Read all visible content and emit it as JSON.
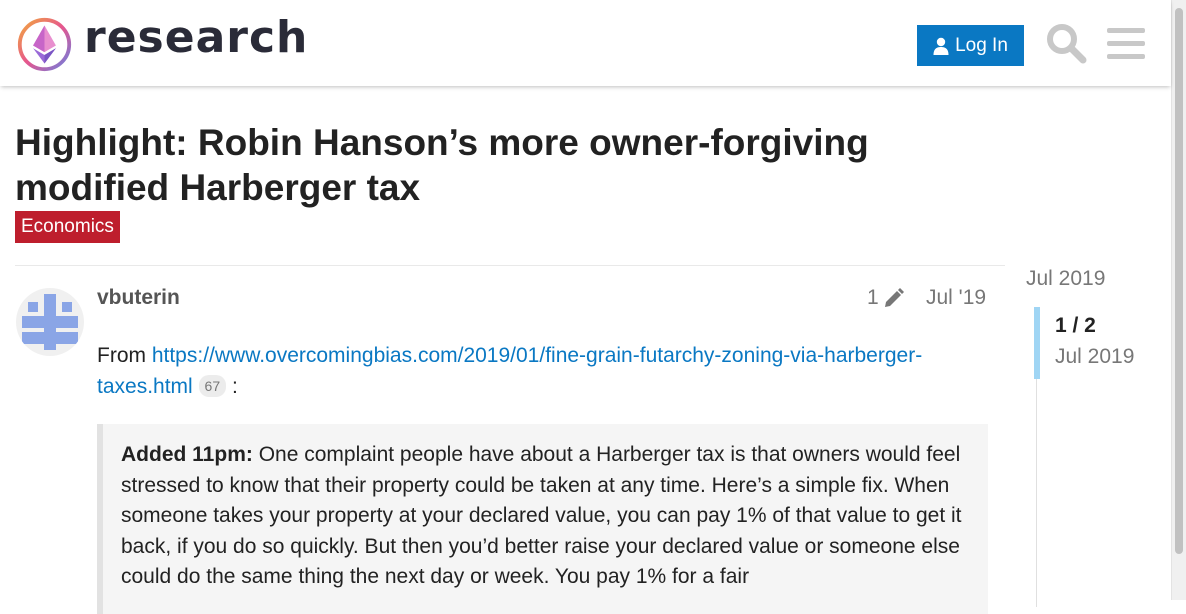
{
  "header": {
    "logo_text": "research",
    "login_label": "Log In"
  },
  "topic": {
    "title": "Highlight: Robin Hanson’s more owner-forgiving modified Harberger tax",
    "category": "Economics",
    "category_color": "#be1e2d"
  },
  "post": {
    "username": "vbuterin",
    "edit_count": "1",
    "date": "Jul '19",
    "intro_prefix": "From ",
    "link_text": "https://www.overcomingbias.com/2019/01/fine-grain-futarchy-zoning-via-harberger-taxes.html",
    "link_clicks": "67",
    "intro_suffix": " :",
    "quote_bold": "Added 11pm:",
    "quote_text": " One complaint people have about a Harberger tax is that owners would feel stressed to know that their property could be taken at any time. Here’s a simple fix. When someone takes your property at your declared value, you can pay 1% of that value to get it back, if you do so quickly. But then you’d better raise your declared value or someone else could do the same thing the next day or week. You pay 1% for a fair"
  },
  "timeline": {
    "top_date": "Jul 2019",
    "count": "1 / 2",
    "current_date": "Jul 2019"
  },
  "colors": {
    "accent": "#0a78c3",
    "timeline_handle": "#9fd5f4"
  }
}
